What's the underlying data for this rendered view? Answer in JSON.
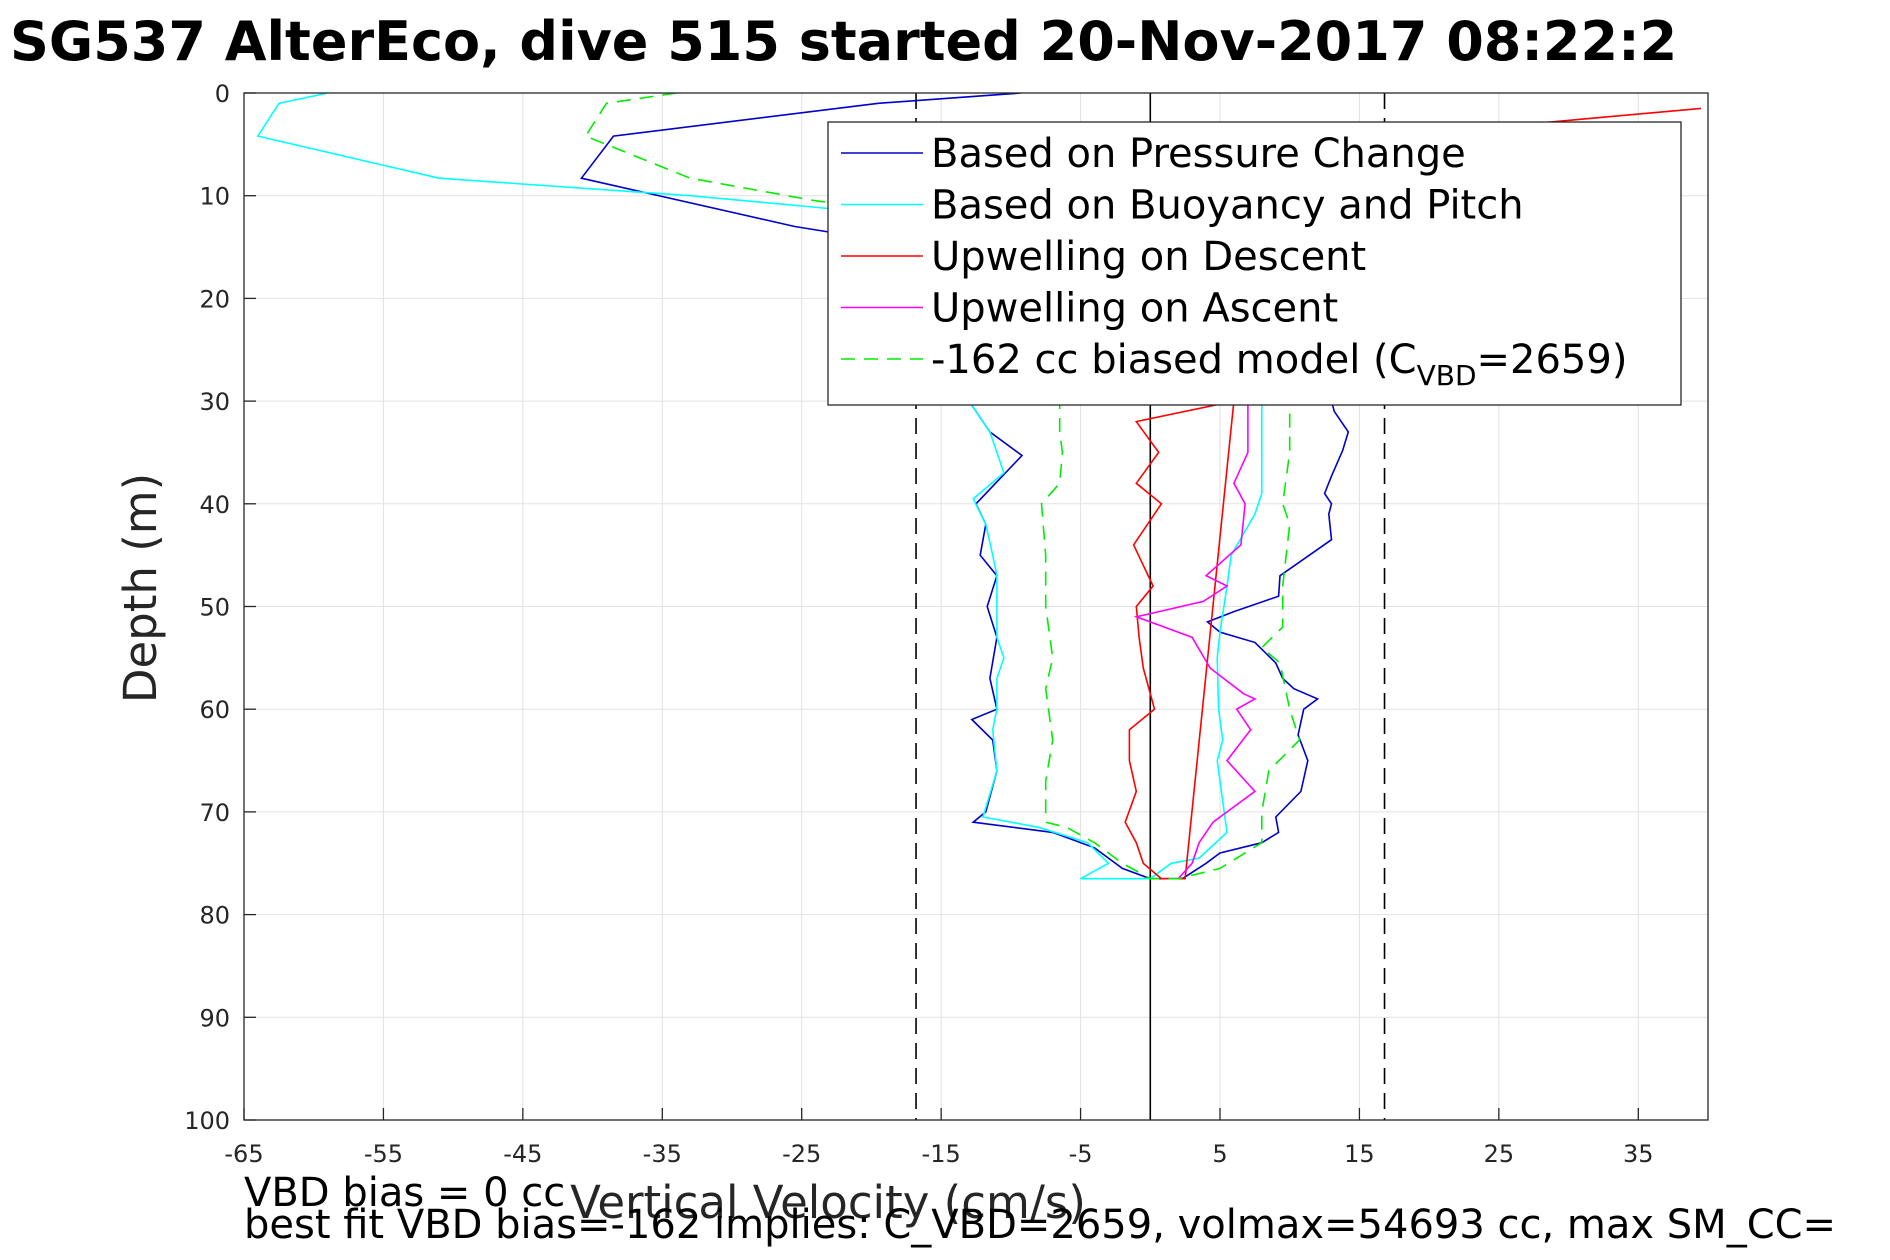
{
  "title": "SG537 AlterEco, dive 515 started 20-Nov-2017 08:22:2",
  "footnotes": [
    "VBD bias = 0 cc",
    "best fit VBD bias=-162 implies: C_VBD=2659, volmax=54693 cc, max SM_CC="
  ],
  "chart_data": {
    "type": "line",
    "xlabel": "Vertical Velocity (cm/s)",
    "ylabel": "Depth (m)",
    "xlim": [
      -65,
      40
    ],
    "ylim": [
      0,
      100
    ],
    "y_reversed": true,
    "grid": true,
    "xticks": [
      -65,
      -55,
      -45,
      -35,
      -25,
      -15,
      -5,
      5,
      15,
      25,
      35
    ],
    "yticks": [
      0,
      10,
      20,
      30,
      40,
      50,
      60,
      70,
      80,
      90,
      100
    ],
    "legend_position": "top-right",
    "reference_lines": [
      {
        "x": -16.8,
        "style": "dashed",
        "color": "#000000"
      },
      {
        "x": 0,
        "style": "solid",
        "color": "#000000"
      },
      {
        "x": 16.8,
        "style": "dashed",
        "color": "#000000"
      }
    ],
    "legend": [
      {
        "text": "Based on Pressure Change",
        "color": "#0000cc",
        "dash": false
      },
      {
        "text": "Based on Buoyancy and Pitch",
        "color": "#00ffff",
        "dash": false
      },
      {
        "text": "Upwelling on Descent",
        "color": "#ff0000",
        "dash": false
      },
      {
        "text": "Upwelling on Ascent",
        "color": "#ff00ff",
        "dash": false
      },
      {
        "text": "-162 cc biased model (C",
        "sub": "VBD",
        "suffix": "=2659)",
        "color": "#00ee00",
        "dash": true
      }
    ],
    "series": [
      {
        "color": "#0000cc",
        "dash": false,
        "points": [
          [
            -9.3,
            0
          ],
          [
            -19.5,
            1
          ],
          [
            -38.5,
            4.2
          ],
          [
            -40.8,
            8.3
          ],
          [
            -25.5,
            13
          ],
          [
            -20,
            14.2
          ],
          [
            -13,
            30
          ],
          [
            -11.5,
            33
          ],
          [
            -9.2,
            35.3
          ],
          [
            -12.5,
            40
          ],
          [
            -11.8,
            42
          ],
          [
            -12.2,
            45
          ],
          [
            -11,
            47
          ],
          [
            -11.7,
            50
          ],
          [
            -11,
            53
          ],
          [
            -11.5,
            57
          ],
          [
            -11,
            60
          ],
          [
            -12.8,
            61
          ],
          [
            -11.3,
            63
          ],
          [
            -11,
            66
          ],
          [
            -11.8,
            70
          ],
          [
            -12.7,
            71
          ],
          [
            -7,
            72
          ],
          [
            -4,
            73.5
          ],
          [
            -2,
            75.5
          ],
          [
            0,
            76.5
          ],
          [
            2.3,
            76.5
          ],
          [
            4,
            75
          ],
          [
            5,
            74
          ],
          [
            8,
            73
          ],
          [
            9.2,
            72
          ],
          [
            9,
            70.5
          ],
          [
            10.8,
            68
          ],
          [
            11.3,
            65
          ],
          [
            10.6,
            62.5
          ],
          [
            11,
            60
          ],
          [
            12,
            59
          ],
          [
            10.3,
            58
          ],
          [
            9.5,
            57
          ],
          [
            9,
            55.5
          ],
          [
            7.5,
            53.5
          ],
          [
            5,
            52.5
          ],
          [
            4.1,
            51.5
          ],
          [
            6,
            50.5
          ],
          [
            9.2,
            49
          ],
          [
            9.3,
            47
          ],
          [
            13,
            43.5
          ],
          [
            12.8,
            41
          ],
          [
            13,
            40
          ],
          [
            12.5,
            39
          ],
          [
            13,
            37.3
          ],
          [
            13.8,
            34.8
          ],
          [
            14.2,
            33
          ],
          [
            13.2,
            31
          ],
          [
            13,
            30
          ]
        ]
      },
      {
        "color": "#00ffff",
        "dash": false,
        "points": [
          [
            -59,
            0
          ],
          [
            -62.5,
            1
          ],
          [
            -64,
            4.2
          ],
          [
            -51,
            8.3
          ],
          [
            -33,
            10
          ],
          [
            -25,
            11
          ],
          [
            -14,
            12.4
          ],
          [
            -13,
            30
          ],
          [
            -11.5,
            33
          ],
          [
            -10.5,
            37
          ],
          [
            -12.7,
            39.5
          ],
          [
            -11.8,
            42
          ],
          [
            -11.3,
            45
          ],
          [
            -11,
            47
          ],
          [
            -11,
            50
          ],
          [
            -11,
            53
          ],
          [
            -10.5,
            55
          ],
          [
            -11,
            57
          ],
          [
            -11,
            60
          ],
          [
            -11.3,
            62
          ],
          [
            -11,
            66
          ],
          [
            -12,
            70.5
          ],
          [
            -8,
            71.5
          ],
          [
            -4.5,
            73
          ],
          [
            -3,
            75
          ],
          [
            -5,
            76.5
          ],
          [
            0,
            76.5
          ],
          [
            1.5,
            75
          ],
          [
            3.5,
            74.5
          ],
          [
            5.5,
            72
          ],
          [
            5.2,
            69
          ],
          [
            4.8,
            65
          ],
          [
            5.2,
            63
          ],
          [
            4.9,
            60
          ],
          [
            4.8,
            55
          ],
          [
            5,
            52.5
          ],
          [
            5.5,
            48
          ],
          [
            5.8,
            45
          ],
          [
            7.5,
            41
          ],
          [
            8,
            39
          ],
          [
            8,
            35
          ],
          [
            8,
            30
          ]
        ]
      },
      {
        "color": "#ff0000",
        "dash": false,
        "points": [
          [
            39.5,
            1.5
          ],
          [
            33,
            2.3
          ],
          [
            20,
            3.9
          ],
          [
            6,
            30
          ],
          [
            -1,
            32
          ],
          [
            0.6,
            35
          ],
          [
            -1,
            38
          ],
          [
            0.8,
            40
          ],
          [
            -1.2,
            44
          ],
          [
            0.2,
            48
          ],
          [
            -1,
            50
          ],
          [
            -0.8,
            53
          ],
          [
            -0.5,
            56
          ],
          [
            0.3,
            60
          ],
          [
            -1.5,
            62
          ],
          [
            -1.5,
            65
          ],
          [
            -1,
            68
          ],
          [
            -1.8,
            71
          ],
          [
            -1,
            73
          ],
          [
            -0.5,
            75
          ],
          [
            0.8,
            76.5
          ],
          [
            2.5,
            76.5
          ],
          [
            6,
            30
          ]
        ]
      },
      {
        "color": "#ff00ff",
        "dash": false,
        "points": [
          [
            7,
            30
          ],
          [
            7,
            35
          ],
          [
            6,
            38
          ],
          [
            6.8,
            40
          ],
          [
            6.5,
            44
          ],
          [
            4,
            47
          ],
          [
            5.5,
            48
          ],
          [
            3.8,
            49.5
          ],
          [
            -1,
            51
          ],
          [
            3,
            53
          ],
          [
            4.3,
            56
          ],
          [
            6.7,
            58.5
          ],
          [
            7.5,
            59
          ],
          [
            6.2,
            60
          ],
          [
            7.2,
            62
          ],
          [
            5.5,
            65
          ],
          [
            7.5,
            68
          ],
          [
            4.5,
            71
          ],
          [
            3.5,
            73
          ],
          [
            3,
            75
          ],
          [
            2,
            76.5
          ]
        ]
      },
      {
        "color": "#00ee00",
        "dash": true,
        "points": [
          [
            -34,
            0
          ],
          [
            -39,
            1
          ],
          [
            -40.5,
            4.2
          ],
          [
            -33,
            8.3
          ],
          [
            -24,
            10.5
          ],
          [
            -15,
            12
          ],
          [
            -8,
            14
          ],
          [
            -7.5,
            25
          ],
          [
            -6.5,
            30
          ],
          [
            -6.5,
            33
          ],
          [
            -6.3,
            35
          ],
          [
            -6.5,
            38
          ],
          [
            -7.8,
            40
          ],
          [
            -7.5,
            45
          ],
          [
            -7.5,
            50
          ],
          [
            -7,
            55
          ],
          [
            -7.5,
            58
          ],
          [
            -7.3,
            60
          ],
          [
            -7,
            63
          ],
          [
            -7.5,
            67
          ],
          [
            -7.5,
            71
          ],
          [
            -6,
            71.5
          ],
          [
            -4,
            73
          ],
          [
            -2,
            75
          ],
          [
            0,
            76.5
          ],
          [
            2,
            76.5
          ],
          [
            5,
            75.5
          ],
          [
            8,
            73
          ],
          [
            8,
            70
          ],
          [
            8.5,
            66
          ],
          [
            10.7,
            63
          ],
          [
            10,
            60
          ],
          [
            9.3,
            55.5
          ],
          [
            8,
            54
          ],
          [
            9.5,
            52
          ],
          [
            9.5,
            48
          ],
          [
            10,
            42
          ],
          [
            9.5,
            40
          ],
          [
            10,
            35
          ],
          [
            10,
            30
          ]
        ]
      }
    ]
  }
}
